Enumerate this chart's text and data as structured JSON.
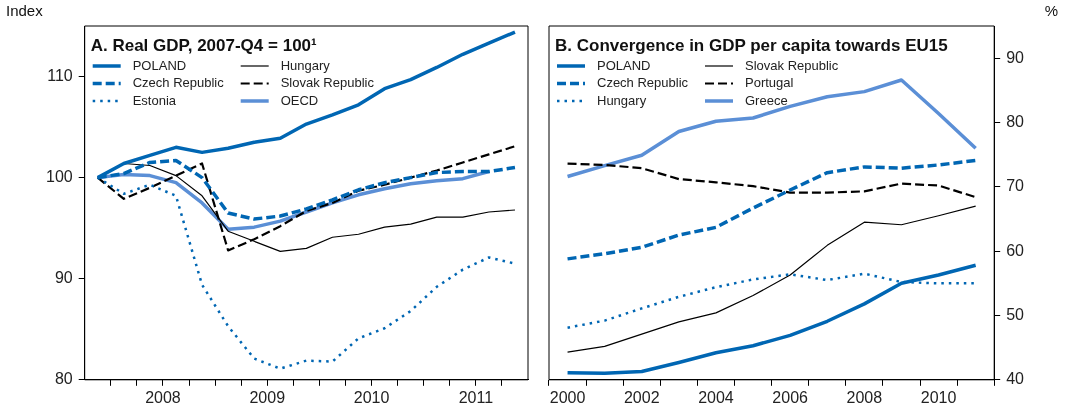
{
  "chart_data": [
    {
      "type": "line",
      "title": "A. Real GDP, 2007-Q4 = 100¹",
      "ylabel": "Index",
      "legend": "top left",
      "marker": "none",
      "x": [
        2007.875,
        2008.125,
        2008.375,
        2008.625,
        2008.875,
        2009.125,
        2009.375,
        2009.625,
        2009.875,
        2010.125,
        2010.375,
        2010.625,
        2010.875,
        2011.125,
        2011.375,
        2011.625,
        2011.875
      ],
      "series": [
        {
          "name": "POLAND",
          "color": "#0066b3",
          "line_style": "solid",
          "values": [
            100,
            101.4,
            102.2,
            103.0,
            102.5,
            102.9,
            103.5,
            103.9,
            105.3,
            106.2,
            107.2,
            108.8,
            109.7,
            110.9,
            112.2,
            113.3,
            114.4
          ]
        },
        {
          "name": "Czech Republic",
          "color": "#0066b3",
          "line_style": "dashed",
          "values": [
            100,
            100.4,
            101.5,
            101.7,
            100.0,
            96.5,
            95.9,
            96.2,
            96.9,
            97.8,
            98.8,
            99.5,
            100.0,
            100.5,
            100.6,
            100.6,
            101.0
          ]
        },
        {
          "name": "Estonia",
          "color": "#0066b3",
          "line_style": "dotted",
          "values": [
            100,
            98.4,
            99.3,
            98.2,
            89.4,
            85.3,
            82.1,
            81.1,
            81.9,
            81.8,
            84.1,
            85.1,
            86.8,
            89.2,
            90.9,
            92.1,
            91.5
          ]
        },
        {
          "name": "Hungary",
          "color": "#000000",
          "line_style": "solid",
          "values": [
            100,
            101.4,
            101.2,
            100.2,
            98.2,
            94.7,
            93.7,
            92.7,
            93.0,
            94.1,
            94.4,
            95.1,
            95.4,
            96.1,
            96.1,
            96.6,
            96.8
          ]
        },
        {
          "name": "Slovak Republic",
          "color": "#000000",
          "line_style": "dashed",
          "values": [
            100,
            97.9,
            99.0,
            100.2,
            101.4,
            92.8,
            93.9,
            95.2,
            96.7,
            97.5,
            98.7,
            99.3,
            100.0,
            100.7,
            101.5,
            102.3,
            103.1
          ]
        },
        {
          "name": "OECD",
          "color": "#5b8fd6",
          "line_style": "solid",
          "values": [
            100,
            100.3,
            100.2,
            99.5,
            97.5,
            94.9,
            95.1,
            95.7,
            96.6,
            97.5,
            98.3,
            98.9,
            99.4,
            99.7,
            99.9,
            100.6,
            null
          ]
        }
      ],
      "xlim": [
        2007.75,
        2012
      ],
      "xticks": [
        {
          "value": 2008,
          "label": null
        },
        {
          "value": 2008.25,
          "label": null
        },
        {
          "value": 2008.5,
          "label": "2008"
        },
        {
          "value": 2008.75,
          "label": null
        },
        {
          "value": 2009,
          "label": null
        },
        {
          "value": 2009.25,
          "label": null
        },
        {
          "value": 2009.5,
          "label": "2009"
        },
        {
          "value": 2009.75,
          "label": null
        },
        {
          "value": 2010,
          "label": null
        },
        {
          "value": 2010.25,
          "label": null
        },
        {
          "value": 2010.5,
          "label": "2010"
        },
        {
          "value": 2010.75,
          "label": null
        },
        {
          "value": 2011,
          "label": null
        },
        {
          "value": 2011.25,
          "label": null
        },
        {
          "value": 2011.5,
          "label": "2011"
        },
        {
          "value": 2011.75,
          "label": null
        }
      ],
      "ylim": [
        80,
        115
      ],
      "yticks": [
        80,
        90,
        100,
        110
      ]
    },
    {
      "type": "line",
      "title": "B. Convergence in GDP per capita towards EU15",
      "y2label": "%",
      "legend": "top left",
      "marker": "none",
      "categories": [
        "2000",
        null,
        "2002",
        null,
        "2004",
        null,
        "2006",
        null,
        "2008",
        null,
        "2010",
        null
      ],
      "series": [
        {
          "name": "POLAND",
          "color": "#0066b3",
          "line_style": "solid",
          "axis": "y2",
          "values": [
            41.1,
            41.0,
            41.3,
            42.7,
            44.2,
            45.3,
            46.9,
            49.1,
            51.8,
            55.0,
            56.3,
            57.8
          ]
        },
        {
          "name": "Czech Republic",
          "color": "#0066b3",
          "line_style": "dashed",
          "axis": "y2",
          "values": [
            58.8,
            59.6,
            60.6,
            62.5,
            63.7,
            66.7,
            69.5,
            72.2,
            73.1,
            72.9,
            73.4,
            74.1
          ]
        },
        {
          "name": "Hungary",
          "color": "#0066b3",
          "line_style": "dotted",
          "axis": "y2",
          "values": [
            48.1,
            49.2,
            51.1,
            52.9,
            54.4,
            55.6,
            56.4,
            55.5,
            56.5,
            55.2,
            55.0,
            55.0
          ]
        },
        {
          "name": "Slovak Republic",
          "color": "#000000",
          "line_style": "solid",
          "axis": "y2",
          "values": [
            44.3,
            45.2,
            47.1,
            49.0,
            50.4,
            53.1,
            56.3,
            60.9,
            64.5,
            64.1,
            65.5,
            67.0
          ]
        },
        {
          "name": "Portugal",
          "color": "#000000",
          "line_style": "dashed",
          "axis": "y2",
          "values": [
            73.6,
            73.4,
            72.9,
            71.2,
            70.7,
            70.1,
            69.1,
            69.1,
            69.3,
            70.5,
            70.2,
            68.4
          ]
        },
        {
          "name": "Greece",
          "color": "#5b8fd6",
          "line_style": "solid",
          "axis": "y2",
          "values": [
            71.6,
            73.3,
            74.9,
            78.6,
            80.2,
            80.7,
            82.5,
            84.0,
            84.8,
            86.6,
            81.4,
            76.0
          ]
        }
      ],
      "y2lim": [
        40,
        95
      ],
      "y2ticks": [
        40,
        50,
        60,
        70,
        80,
        90
      ]
    }
  ]
}
